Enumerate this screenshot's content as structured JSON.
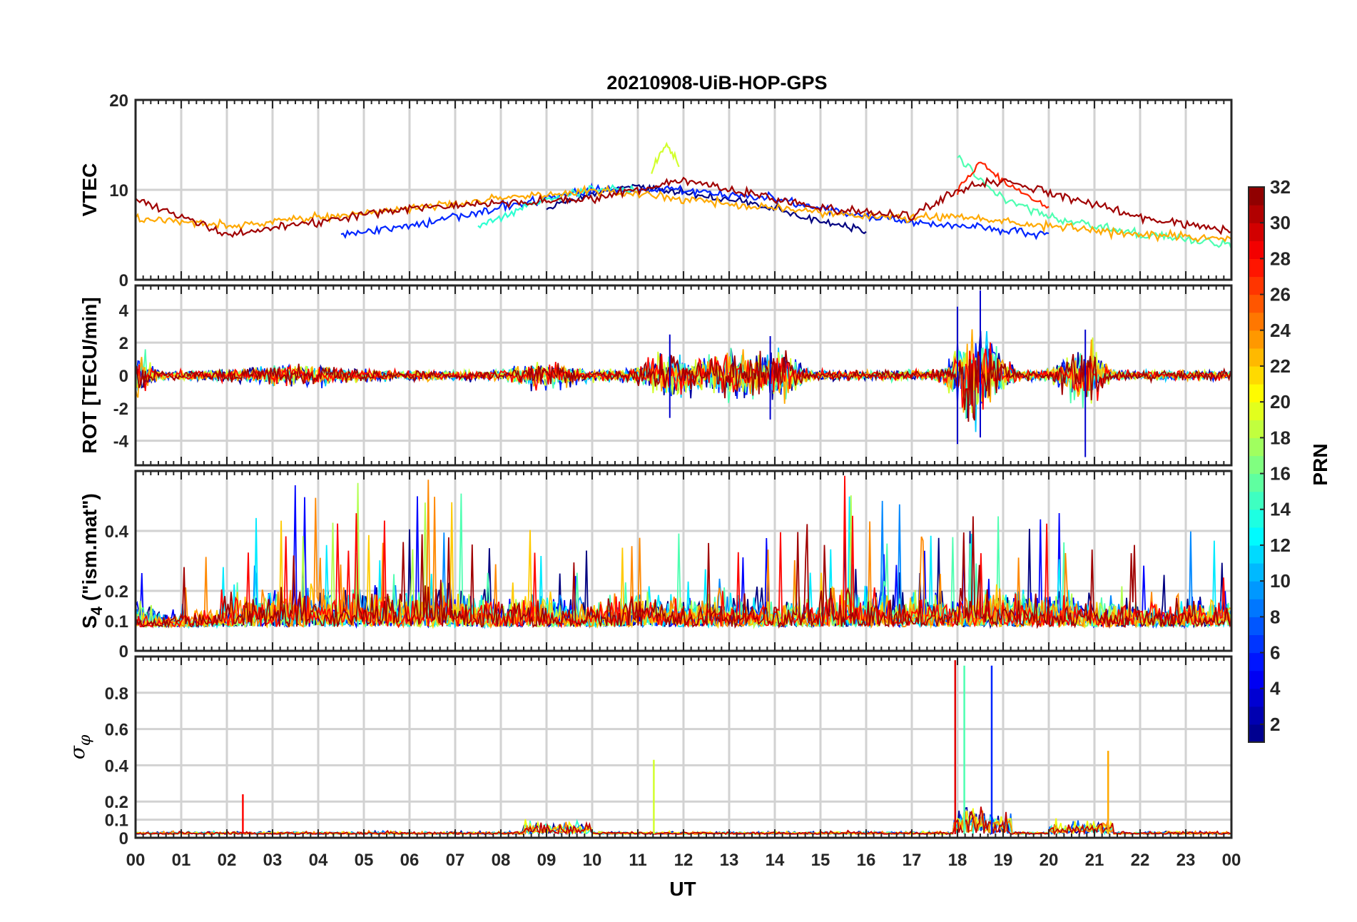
{
  "chart_data": {
    "type": "line",
    "title": "20210908-UiB-HOP-GPS",
    "xlabel": "UT",
    "x_ticks": [
      "00",
      "01",
      "02",
      "03",
      "04",
      "05",
      "06",
      "07",
      "08",
      "09",
      "10",
      "11",
      "12",
      "13",
      "14",
      "15",
      "16",
      "17",
      "18",
      "19",
      "20",
      "21",
      "22",
      "23",
      "00"
    ],
    "xlim_hours": [
      0,
      24
    ],
    "grid": true,
    "colorbar": {
      "label": "PRN",
      "colormap": "jet",
      "range": [
        1,
        32
      ],
      "ticks": [
        "2",
        "4",
        "6",
        "8",
        "10",
        "12",
        "14",
        "16",
        "18",
        "20",
        "22",
        "24",
        "26",
        "28",
        "30",
        "32"
      ]
    },
    "panels": [
      {
        "name": "vtec",
        "ylabel": "VTEC",
        "ylim": [
          0,
          20
        ],
        "y_ticks": [
          "0",
          "10",
          "20"
        ],
        "series_by_prn_color": [
          {
            "prn": 1,
            "x": [
              9.0,
              10.0,
              11.0,
              12.0,
              13.0,
              14.0,
              15.0,
              16.0
            ],
            "y": [
              8,
              9.5,
              10.5,
              9.5,
              9,
              8,
              6.5,
              5.5
            ]
          },
          {
            "prn": 6,
            "x": [
              4.5,
              6.0,
              8.0,
              10.0,
              12.0,
              14.0,
              16.0,
              18.0,
              20.0
            ],
            "y": [
              5,
              6,
              8,
              10,
              10,
              9,
              7,
              6,
              5
            ]
          },
          {
            "prn": 14,
            "x": [
              7.5,
              9.0,
              10.0,
              11.0
            ],
            "y": [
              6,
              9,
              10,
              10
            ]
          },
          {
            "prn": 15,
            "x": [
              18.0,
              18.5,
              19.0,
              20.0,
              21.0,
              22.0,
              24.0
            ],
            "y": [
              14,
              11,
              9,
              7,
              6,
              5,
              4
            ]
          },
          {
            "prn": 19,
            "x": [
              11.3,
              11.6,
              11.9
            ],
            "y": [
              12,
              15,
              13
            ]
          },
          {
            "prn": 23,
            "x": [
              0.0,
              2.0,
              4.0,
              6.0,
              8.0,
              10.0,
              12.0,
              14.0,
              16.0,
              18.0,
              20.0,
              22.0,
              24.0
            ],
            "y": [
              7,
              6,
              7,
              8,
              9,
              10,
              9,
              8,
              7,
              7,
              6,
              5,
              4.5
            ]
          },
          {
            "prn": 27,
            "x": [
              18.0,
              18.5,
              19.0,
              20.0
            ],
            "y": [
              10,
              13,
              11,
              8
            ]
          },
          {
            "prn": 31,
            "x": [
              0.0,
              2.0,
              6.0,
              10.0,
              12.0,
              13.0,
              15.0,
              17.0,
              18.0,
              19.0,
              22.0,
              24.0
            ],
            "y": [
              9,
              5,
              8,
              9,
              11,
              10,
              8,
              7,
              10,
              11,
              7,
              5.5
            ]
          }
        ]
      },
      {
        "name": "rot",
        "ylabel": "ROT [TECU/min]",
        "ylim": [
          -5.5,
          5.5
        ],
        "y_ticks": [
          "-4",
          "-2",
          "0",
          "2",
          "4"
        ],
        "envelope_peaks": [
          {
            "x": 18.0,
            "min": -4.2,
            "max": 4.2
          },
          {
            "x": 18.5,
            "min": -3.8,
            "max": 5.2
          },
          {
            "x": 20.8,
            "min": -5.0,
            "max": 2.8
          },
          {
            "x": 13.9,
            "min": -2.7,
            "max": 2.4
          },
          {
            "x": 11.7,
            "min": -2.6,
            "max": 2.5
          }
        ]
      },
      {
        "name": "s4",
        "ylabel": "S4 (\"ism.mat\")",
        "ylabel_parts": {
          "main": "S",
          "sub": "4",
          "rest": " (\"ism.mat\")"
        },
        "ylim": [
          0,
          0.6
        ],
        "y_ticks": [
          "0",
          "0.1",
          "0.2",
          "0.4"
        ],
        "baseline": 0.08,
        "max_observed": 0.6
      },
      {
        "name": "sigma_phi",
        "ylabel": "σφ",
        "ylabel_parts": {
          "main": "σ",
          "sub": "φ"
        },
        "ylim": [
          0,
          1
        ],
        "y_ticks": [
          "0",
          "0.1",
          "0.2",
          "0.4",
          "0.6",
          "0.8"
        ],
        "spikes": [
          {
            "x": 17.95,
            "y": 0.98,
            "prn": 29
          },
          {
            "x": 18.15,
            "y": 0.95,
            "prn": 15
          },
          {
            "x": 18.75,
            "y": 0.95,
            "prn": 6
          },
          {
            "x": 21.3,
            "y": 0.48,
            "prn": 23
          },
          {
            "x": 11.35,
            "y": 0.43,
            "prn": 19
          },
          {
            "x": 2.35,
            "y": 0.24,
            "prn": 28
          }
        ]
      }
    ]
  }
}
